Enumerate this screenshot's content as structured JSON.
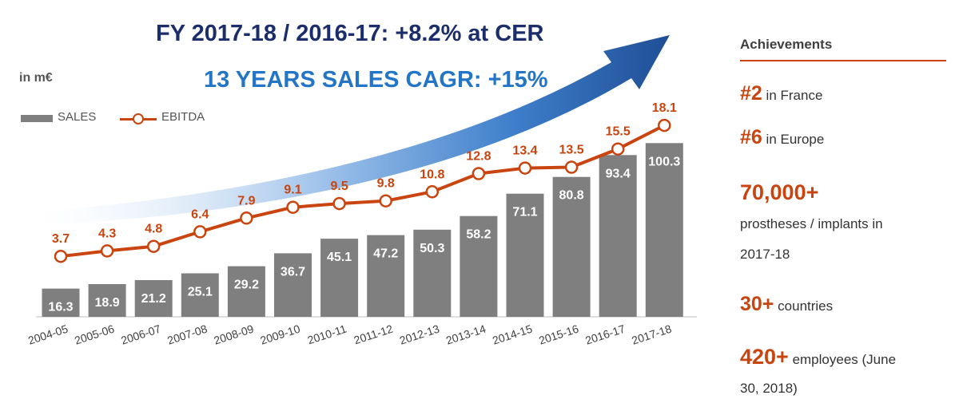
{
  "headline": {
    "line1": "FY 2017-18 / 2016-17: +8.2% at CER",
    "line2": "13 YEARS SALES CAGR: +15%"
  },
  "unit_label": "in m€",
  "legend": {
    "sales": "SALES",
    "ebitda": "EBITDA"
  },
  "colors": {
    "bar": "#7f7f7f",
    "line": "#c9440e",
    "headline1": "#1b2d6b",
    "headline2": "#2376c7",
    "arrow_dark": "#1f4e96",
    "arrow_light": "#dfe9f6"
  },
  "chart_data": {
    "type": "bar",
    "title": "",
    "xlabel": "",
    "ylabel": "in m€",
    "categories": [
      "2004-05",
      "2005-06",
      "2006-07",
      "2007-08",
      "2008-09",
      "2009-10",
      "2010-11",
      "2011-12",
      "2012-13",
      "2013-14",
      "2014-15",
      "2015-16",
      "2016-17",
      "2017-18"
    ],
    "series": [
      {
        "name": "SALES",
        "type": "bar",
        "values": [
          16.3,
          18.9,
          21.2,
          25.1,
          29.2,
          36.7,
          45.1,
          47.2,
          50.3,
          58.2,
          71.1,
          80.8,
          93.4,
          100.3
        ]
      },
      {
        "name": "EBITDA",
        "type": "line",
        "values": [
          3.7,
          4.3,
          4.8,
          6.4,
          7.9,
          9.1,
          9.5,
          9.8,
          10.8,
          12.8,
          13.4,
          13.5,
          15.5,
          18.1
        ]
      }
    ]
  },
  "achievements": {
    "title": "Achievements",
    "item1": {
      "value": "#2",
      "text": "in France"
    },
    "item2": {
      "value": "#6",
      "text": "in Europe"
    },
    "item3": {
      "value": "70,000+",
      "line1": "prostheses / implants in",
      "line2": "2017-18"
    },
    "item4": {
      "value": "30+",
      "text": "countries"
    },
    "item5": {
      "value": "420+",
      "text": "employees (June",
      "line2": "30, 2018)"
    }
  }
}
